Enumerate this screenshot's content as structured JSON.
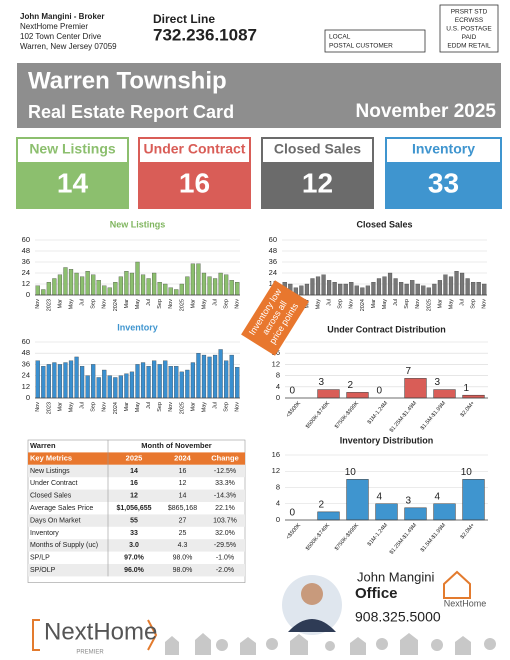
{
  "header": {
    "sender": [
      "John Mangini - Broker",
      "NextHome Premier",
      "102 Town Center Drive",
      "Warren, New Jersey 07059"
    ],
    "direct_line_label": "Direct Line",
    "direct_line": "732.236.1087",
    "recipient": [
      "LOCAL",
      "POSTAL CUSTOMER"
    ],
    "postage": [
      "PRSRT STD",
      "ECRWSS",
      "U.S. POSTAGE",
      "PAID",
      "EDDM RETAIL"
    ]
  },
  "banner": {
    "title": "Warren Township",
    "subtitle": "Real Estate Report Card",
    "period": "November 2025"
  },
  "kpis": [
    {
      "label": "New Listings",
      "value": 14,
      "color": "#8cbf6e"
    },
    {
      "label": "Under Contract",
      "value": 16,
      "color": "#d95d57"
    },
    {
      "label": "Closed Sales",
      "value": 12,
      "color": "#6b6b6b"
    },
    {
      "label": "Inventory",
      "value": 33,
      "color": "#3f95cf"
    }
  ],
  "chart_data": [
    {
      "type": "bar",
      "title": "New Listings",
      "title_color": "#7fb55e",
      "color": "#8cbf6e",
      "categories": [
        "Nov",
        null,
        "2023",
        null,
        "Mar",
        null,
        "May",
        null,
        "Jul",
        null,
        "Sep",
        null,
        "Nov",
        null,
        "2024",
        null,
        "Mar",
        null,
        "May",
        null,
        "Jul",
        null,
        "Sep",
        null,
        "Nov",
        null,
        "2025",
        null,
        "Mar",
        null,
        "May",
        null,
        "Jul",
        null,
        "Sep",
        null,
        "Nov"
      ],
      "values": [
        10,
        6,
        14,
        18,
        22,
        30,
        28,
        24,
        20,
        26,
        22,
        16,
        10,
        8,
        14,
        20,
        26,
        24,
        36,
        22,
        18,
        24,
        14,
        12,
        8,
        6,
        12,
        20,
        34,
        34,
        24,
        20,
        18,
        24,
        22,
        16,
        14
      ],
      "ylim": [
        0,
        60
      ],
      "yticks": [
        0,
        12,
        24,
        36,
        48,
        60
      ],
      "grid": true
    },
    {
      "type": "bar",
      "title": "Closed Sales",
      "title_color": "#222222",
      "color": "#777777",
      "categories": [
        "Nov",
        null,
        "2023",
        null,
        "Mar",
        null,
        "May",
        null,
        "Jul",
        null,
        "Sep",
        null,
        "Nov",
        null,
        "2024",
        null,
        "Mar",
        null,
        "May",
        null,
        "Jul",
        null,
        "Sep",
        null,
        "Nov",
        null,
        "2025",
        null,
        "Mar",
        null,
        "May",
        null,
        "Jul",
        null,
        "Sep",
        null,
        "Nov"
      ],
      "values": [
        14,
        12,
        8,
        10,
        12,
        18,
        20,
        22,
        16,
        14,
        12,
        12,
        14,
        10,
        8,
        10,
        14,
        18,
        20,
        24,
        18,
        14,
        12,
        16,
        12,
        10,
        8,
        12,
        16,
        22,
        20,
        26,
        24,
        18,
        14,
        14,
        12
      ],
      "ylim": [
        0,
        60
      ],
      "yticks": [
        0,
        12,
        24,
        36,
        48,
        60
      ],
      "grid": true
    },
    {
      "type": "bar",
      "title": "Inventory",
      "title_color": "#3f95cf",
      "color": "#3a8fcf",
      "categories": [
        "Nov",
        null,
        "2023",
        null,
        "Mar",
        null,
        "May",
        null,
        "Jul",
        null,
        "Sep",
        null,
        "Nov",
        null,
        "2024",
        null,
        "Mar",
        null,
        "May",
        null,
        "Jul",
        null,
        "Sep",
        null,
        "Nov",
        null,
        "2025",
        null,
        "Mar",
        null,
        "May",
        null,
        "Jul",
        null,
        "Sep",
        null,
        "Nov"
      ],
      "values": [
        40,
        34,
        36,
        38,
        36,
        38,
        40,
        44,
        34,
        24,
        36,
        22,
        30,
        24,
        22,
        24,
        26,
        28,
        36,
        38,
        34,
        40,
        36,
        40,
        34,
        34,
        28,
        30,
        38,
        48,
        46,
        44,
        46,
        52,
        40,
        46,
        33
      ],
      "ylim": [
        0,
        60
      ],
      "yticks": [
        0,
        12,
        24,
        36,
        48,
        60
      ],
      "grid": true
    },
    {
      "type": "bar",
      "title": "Under Contract Distribution",
      "title_color": "#222222",
      "color": "#d95d57",
      "categories": [
        "<$500K",
        "$500K-$749K",
        "$750K-$999K",
        "$1M-1.24M",
        "$1.25M-$1.49M",
        "$1.5M-$1.99M",
        "$2.0M+"
      ],
      "values": [
        0,
        3,
        2,
        0,
        7,
        3,
        1
      ],
      "ylim": [
        0,
        20
      ],
      "yticks": [
        0,
        4,
        8,
        12,
        16,
        20
      ],
      "grid": true,
      "data_labels": true
    },
    {
      "type": "bar",
      "title": "Inventory Distribution",
      "title_color": "#222222",
      "color": "#3f95cf",
      "categories": [
        "<$500K",
        "$500K-$749K",
        "$750K-$999K",
        "$1M-1.24M",
        "$1.25M-$1.49M",
        "$1.5M-$1.99M",
        "$2.0M+"
      ],
      "values": [
        0,
        2,
        10,
        4,
        3,
        4,
        10
      ],
      "ylim": [
        0,
        16
      ],
      "yticks": [
        0,
        4,
        8,
        12,
        16
      ],
      "grid": true,
      "data_labels": true
    }
  ],
  "annotation": [
    "Inventory low",
    "across all",
    "price points"
  ],
  "table": {
    "title": "Warren",
    "period": "Month of November",
    "columns": [
      "Key Metrics",
      "2025",
      "2024",
      "Change"
    ],
    "rows": [
      [
        "New Listings",
        "14",
        "16",
        "-12.5%"
      ],
      [
        "Under Contract",
        "16",
        "12",
        "33.3%"
      ],
      [
        "Closed Sales",
        "12",
        "14",
        "-14.3%"
      ],
      [
        "Average Sales Price",
        "$1,056,655",
        "$865,168",
        "22.1%"
      ],
      [
        "Days On Market",
        "55",
        "27",
        "103.7%"
      ],
      [
        "Inventory",
        "33",
        "25",
        "32.0%"
      ],
      [
        "Months of Supply (uc)",
        "3.0",
        "4.3",
        "-29.5%"
      ],
      [
        "SP/LP",
        "97.0%",
        "98.0%",
        "-1.0%"
      ],
      [
        "SP/OLP",
        "96.0%",
        "98.0%",
        "-2.0%"
      ]
    ]
  },
  "agent": {
    "name": "John Mangini",
    "role": "Office",
    "phone": "908.325.5000",
    "brand": "NextHome"
  },
  "footer": {
    "brand": "NextHome",
    "sub": "PREMIER"
  }
}
